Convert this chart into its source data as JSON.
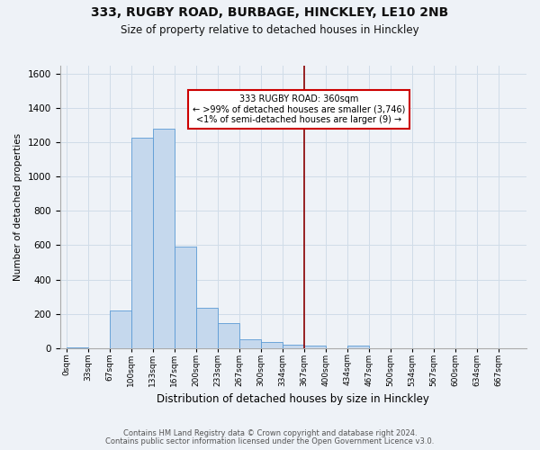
{
  "title": "333, RUGBY ROAD, BURBAGE, HINCKLEY, LE10 2NB",
  "subtitle": "Size of property relative to detached houses in Hinckley",
  "xlabel": "Distribution of detached houses by size in Hinckley",
  "ylabel": "Number of detached properties",
  "footnote1": "Contains HM Land Registry data © Crown copyright and database right 2024.",
  "footnote2": "Contains public sector information licensed under the Open Government Licence v3.0.",
  "bin_labels": [
    "0sqm",
    "33sqm",
    "67sqm",
    "100sqm",
    "133sqm",
    "167sqm",
    "200sqm",
    "233sqm",
    "267sqm",
    "300sqm",
    "334sqm",
    "367sqm",
    "400sqm",
    "434sqm",
    "467sqm",
    "500sqm",
    "534sqm",
    "567sqm",
    "600sqm",
    "634sqm",
    "667sqm"
  ],
  "bar_heights": [
    5,
    0,
    220,
    1225,
    1280,
    590,
    235,
    145,
    50,
    35,
    22,
    15,
    0,
    15,
    0,
    0,
    0,
    0,
    0,
    0,
    0
  ],
  "bar_color": "#c5d8ed",
  "bar_edge_color": "#5b9bd5",
  "grid_color": "#d0dce8",
  "background_color": "#eef2f7",
  "vline_x_index": 11,
  "vline_color": "#8b0000",
  "annotation_title": "333 RUGBY ROAD: 360sqm",
  "annotation_line1": "← >99% of detached houses are smaller (3,746)",
  "annotation_line2": "<1% of semi-detached houses are larger (9) →",
  "annotation_box_color": "#ffffff",
  "annotation_box_edge": "#cc0000",
  "ylim": [
    0,
    1650
  ],
  "yticks": [
    0,
    200,
    400,
    600,
    800,
    1000,
    1200,
    1400,
    1600
  ],
  "bin_width": 33,
  "n_bins": 21
}
